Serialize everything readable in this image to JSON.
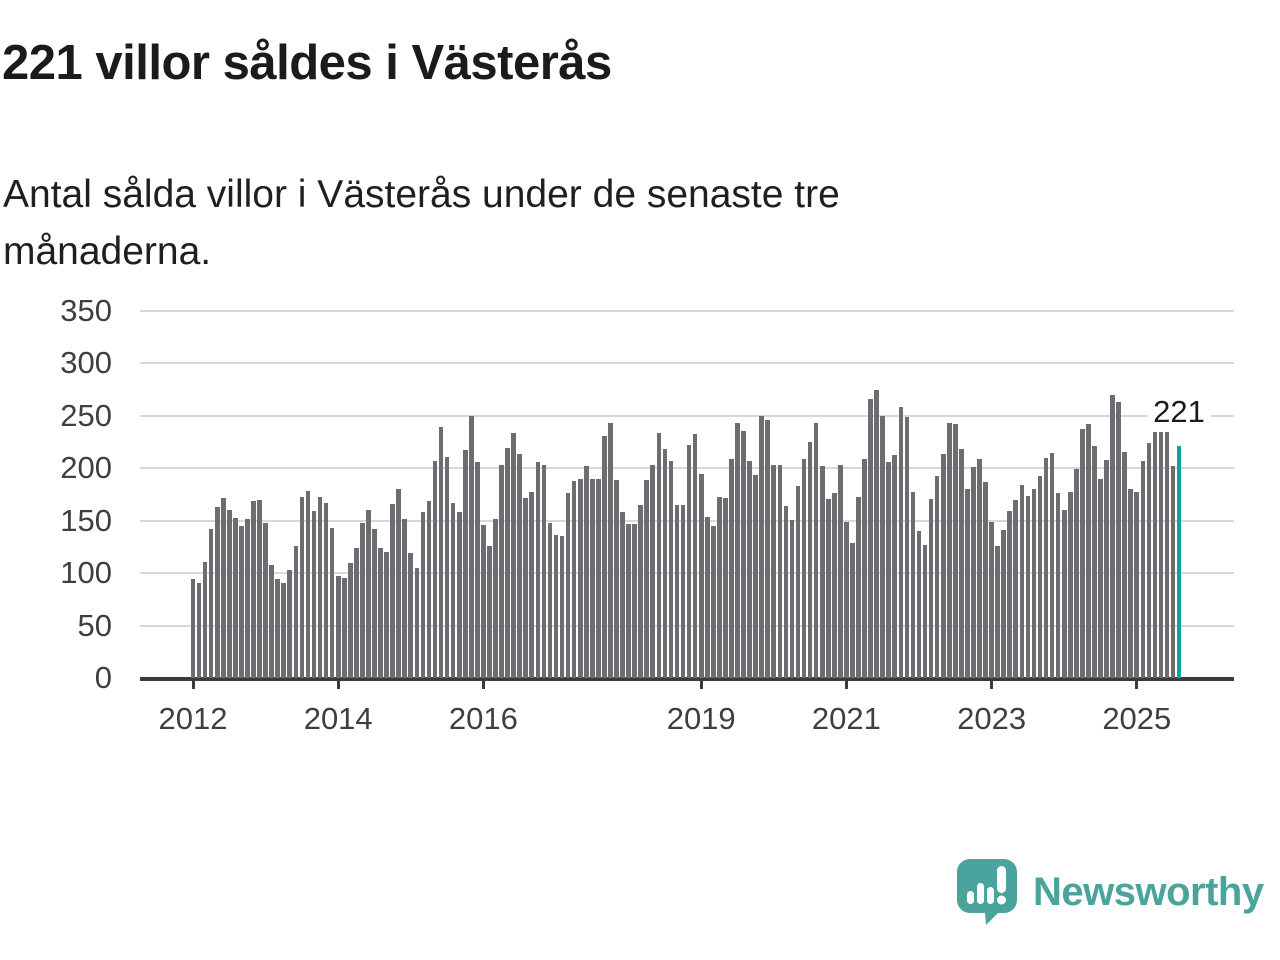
{
  "title": "221 villor såldes i Västerås",
  "subtitle": "Antal sålda villor i Västerås under de senaste tre månaderna.",
  "annotation": {
    "label": "221"
  },
  "logo": {
    "text": "Newsworthy"
  },
  "colors": {
    "bar": "#6c6c71",
    "highlight": "#0ba5a0",
    "grid": "#d8d8d8",
    "axis": "#3b3b3b",
    "axis_text": "#3f3f3f",
    "text": "#1b1b1b",
    "logo": "#4aa49c"
  },
  "chart_data": {
    "type": "bar",
    "title": "221 villor såldes i Västerås",
    "subtitle": "Antal sålda villor i Västerås under de senaste tre månaderna.",
    "x_unit": "month",
    "start_month": "2012-01",
    "end_month": "2025-08",
    "x_tick_labels": [
      "2012",
      "2014",
      "2016",
      "2019",
      "2021",
      "2023",
      "2025"
    ],
    "x_tick_month_index": [
      0,
      24,
      48,
      84,
      108,
      132,
      156
    ],
    "ylim": [
      0,
      350
    ],
    "y_ticks": [
      0,
      50,
      100,
      150,
      200,
      250,
      300,
      350
    ],
    "grid": "horizontal",
    "legend": "none",
    "highlight_last": true,
    "last_value_label": "221",
    "values": [
      94,
      91,
      111,
      142,
      163,
      172,
      160,
      153,
      145,
      152,
      169,
      170,
      148,
      108,
      94,
      91,
      103,
      126,
      173,
      178,
      159,
      173,
      167,
      143,
      97,
      95,
      110,
      124,
      148,
      160,
      142,
      124,
      120,
      166,
      180,
      152,
      119,
      105,
      158,
      169,
      207,
      239,
      211,
      167,
      158,
      217,
      250,
      206,
      146,
      126,
      152,
      203,
      219,
      234,
      214,
      172,
      177,
      206,
      203,
      148,
      136,
      135,
      176,
      188,
      190,
      202,
      190,
      190,
      231,
      243,
      189,
      158,
      147,
      147,
      165,
      189,
      203,
      234,
      218,
      207,
      165,
      165,
      222,
      233,
      195,
      154,
      145,
      173,
      172,
      209,
      243,
      236,
      207,
      194,
      250,
      246,
      203,
      203,
      164,
      151,
      183,
      209,
      225,
      243,
      202,
      171,
      176,
      203,
      149,
      129,
      173,
      209,
      266,
      275,
      250,
      206,
      213,
      258,
      249,
      177,
      140,
      127,
      171,
      193,
      214,
      243,
      242,
      218,
      180,
      201,
      209,
      187,
      149,
      126,
      141,
      159,
      170,
      184,
      174,
      180,
      193,
      210,
      215,
      176,
      160,
      177,
      199,
      237,
      242,
      221,
      190,
      208,
      270,
      263,
      216,
      180,
      177,
      207,
      224,
      235,
      235,
      235,
      202,
      221
    ]
  }
}
